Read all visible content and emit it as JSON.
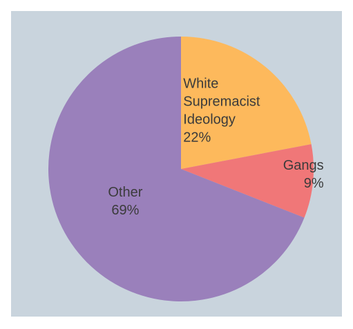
{
  "chart_data": {
    "type": "pie",
    "title": "",
    "slices": [
      {
        "lines": [
          "White",
          "Supremacist",
          "Ideology",
          "22%"
        ],
        "value": 22,
        "color": "#fdb95c"
      },
      {
        "lines": [
          "Gangs",
          "9%"
        ],
        "value": 9,
        "color": "#f07778"
      },
      {
        "lines": [
          "Other",
          "69%"
        ],
        "value": 69,
        "color": "#9a80bb"
      }
    ],
    "start": "top",
    "direction": "clockwise",
    "legend": "none",
    "background_color": "#c9d4dd"
  }
}
